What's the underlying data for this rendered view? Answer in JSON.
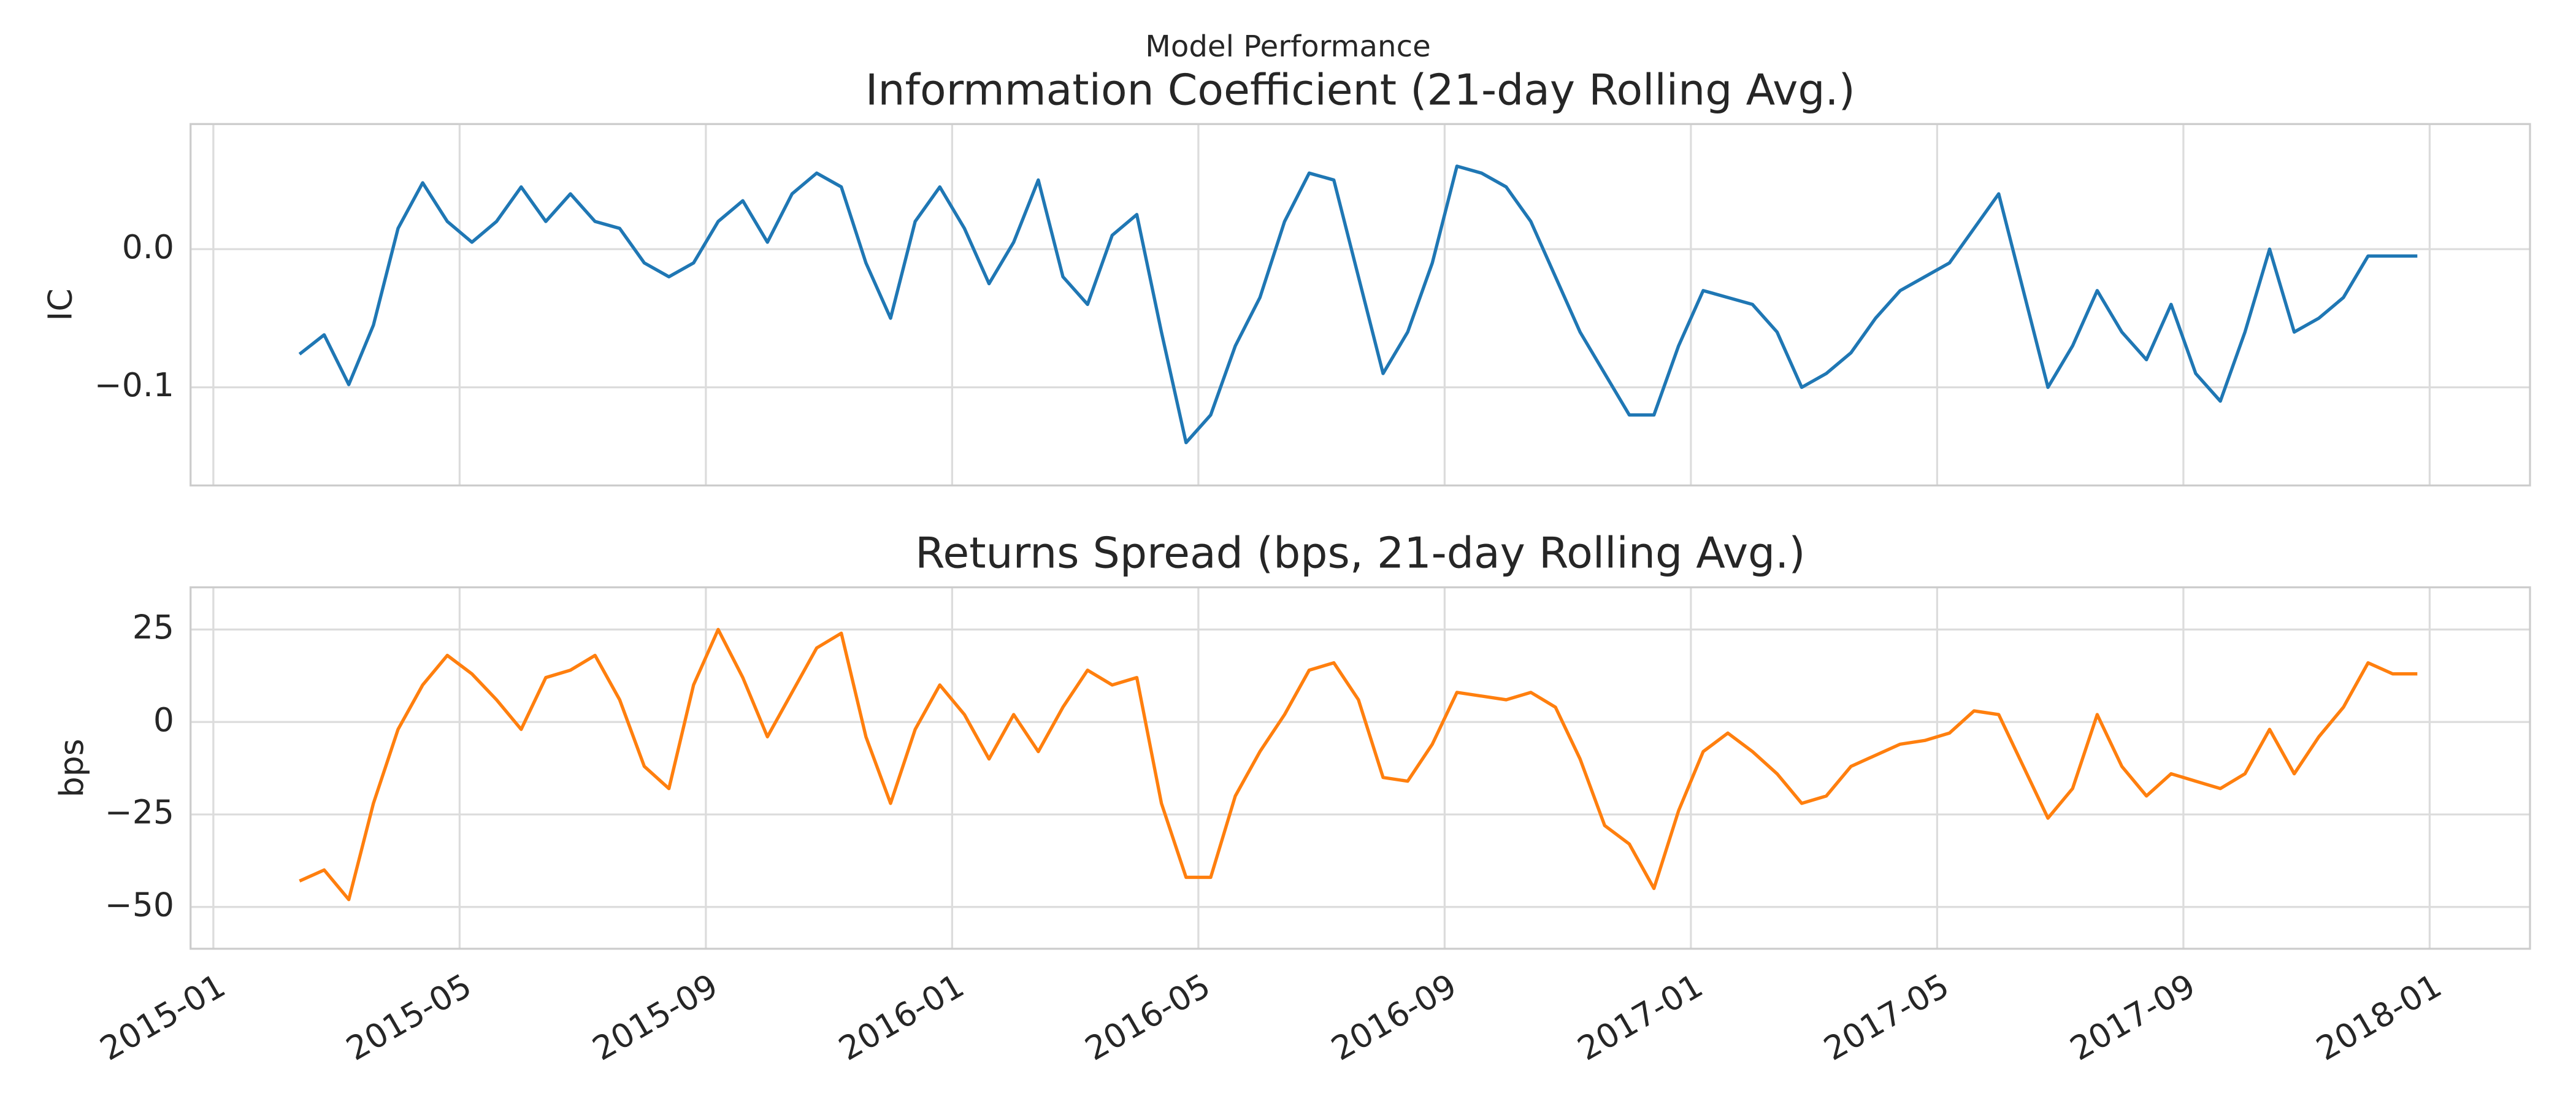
{
  "title": "Model Performance",
  "chart_data": [
    {
      "type": "line",
      "title": "Informmation Coefficient (21-day Rolling Avg.)",
      "ylabel": "IC",
      "color": "#1f77b4",
      "grid": true,
      "xlim": [
        -0.37,
        37.63
      ],
      "xticks": [
        0,
        4,
        8,
        12,
        16,
        20,
        24,
        28,
        32,
        36
      ],
      "ylim": [
        -0.171,
        0.0905
      ],
      "yticks": [
        {
          "value": 0,
          "label": "0.0"
        },
        {
          "value": -0.1,
          "label": "−0.1"
        }
      ],
      "x": [
        1.4,
        1.8,
        2.2,
        2.6,
        3,
        3.4,
        3.8,
        4.2,
        4.6,
        5,
        5.4,
        5.8,
        6.2,
        6.6,
        7,
        7.4,
        7.8,
        8.2,
        8.6,
        9,
        9.4,
        9.8,
        10.2,
        10.6,
        11,
        11.4,
        11.8,
        12.2,
        12.6,
        13,
        13.4,
        13.8,
        14.2,
        14.6,
        15,
        15.4,
        15.8,
        16.2,
        16.6,
        17,
        17.4,
        17.8,
        18.2,
        18.6,
        19,
        19.4,
        19.8,
        20.2,
        20.6,
        21,
        21.4,
        21.8,
        22.2,
        22.6,
        23,
        23.4,
        23.8,
        24.2,
        24.6,
        25,
        25.4,
        25.8,
        26.2,
        26.6,
        27,
        27.4,
        27.8,
        28.2,
        28.6,
        29,
        29.4,
        29.8,
        30.2,
        30.6,
        31,
        31.4,
        31.8,
        32.2,
        32.6,
        33,
        33.4,
        33.8,
        34.2,
        34.6,
        35,
        35.4,
        35.8
      ],
      "values": [
        -0.076,
        -0.062,
        -0.098,
        -0.055,
        0.015,
        0.048,
        0.02,
        0.005,
        0.02,
        0.045,
        0.02,
        0.04,
        0.02,
        0.015,
        -0.01,
        -0.02,
        -0.01,
        0.02,
        0.035,
        0.005,
        0.04,
        0.055,
        0.045,
        -0.01,
        -0.05,
        0.02,
        0.045,
        0.015,
        -0.025,
        0.005,
        0.05,
        -0.02,
        -0.04,
        0.01,
        0.025,
        -0.06,
        -0.14,
        -0.12,
        -0.07,
        -0.035,
        0.02,
        0.055,
        0.05,
        -0.02,
        -0.09,
        -0.06,
        -0.01,
        0.06,
        0.055,
        0.045,
        0.02,
        -0.02,
        -0.06,
        -0.09,
        -0.12,
        -0.12,
        -0.07,
        -0.03,
        -0.035,
        -0.04,
        -0.06,
        -0.1,
        -0.09,
        -0.075,
        -0.05,
        -0.03,
        -0.02,
        -0.01,
        0.015,
        0.04,
        -0.03,
        -0.1,
        -0.07,
        -0.03,
        -0.06,
        -0.08,
        -0.04,
        -0.09,
        -0.11,
        -0.06,
        0.0,
        -0.06,
        -0.05,
        -0.035,
        -0.005,
        -0.005,
        -0.005
      ]
    },
    {
      "type": "line",
      "title": "Returns Spread (bps, 21-day Rolling Avg.)",
      "ylabel": "bps",
      "color": "#ff7f0e",
      "grid": true,
      "xlim": [
        -0.37,
        37.63
      ],
      "xticks": [
        {
          "value": 0,
          "label": "2015-01"
        },
        {
          "value": 4,
          "label": "2015-05"
        },
        {
          "value": 8,
          "label": "2015-09"
        },
        {
          "value": 12,
          "label": "2016-01"
        },
        {
          "value": 16,
          "label": "2016-05"
        },
        {
          "value": 20,
          "label": "2016-09"
        },
        {
          "value": 24,
          "label": "2017-01"
        },
        {
          "value": 28,
          "label": "2017-05"
        },
        {
          "value": 32,
          "label": "2017-09"
        },
        {
          "value": 36,
          "label": "2018-01"
        }
      ],
      "ylim": [
        -61.3,
        36.4
      ],
      "yticks": [
        25,
        0,
        {
          "value": -25,
          "label": "−25"
        },
        {
          "value": -50,
          "label": "−50"
        }
      ],
      "x": [
        1.4,
        1.8,
        2.2,
        2.6,
        3,
        3.4,
        3.8,
        4.2,
        4.6,
        5,
        5.4,
        5.8,
        6.2,
        6.6,
        7,
        7.4,
        7.8,
        8.2,
        8.6,
        9,
        9.4,
        9.8,
        10.2,
        10.6,
        11,
        11.4,
        11.8,
        12.2,
        12.6,
        13,
        13.4,
        13.8,
        14.2,
        14.6,
        15,
        15.4,
        15.8,
        16.2,
        16.6,
        17,
        17.4,
        17.8,
        18.2,
        18.6,
        19,
        19.4,
        19.8,
        20.2,
        20.6,
        21,
        21.4,
        21.8,
        22.2,
        22.6,
        23,
        23.4,
        23.8,
        24.2,
        24.6,
        25,
        25.4,
        25.8,
        26.2,
        26.6,
        27,
        27.4,
        27.8,
        28.2,
        28.6,
        29,
        29.4,
        29.8,
        30.2,
        30.6,
        31,
        31.4,
        31.8,
        32.2,
        32.6,
        33,
        33.4,
        33.8,
        34.2,
        34.6,
        35,
        35.4,
        35.8
      ],
      "values": [
        -43,
        -40,
        -48,
        -22,
        -2,
        10,
        18,
        13,
        6,
        -2,
        12,
        14,
        18,
        6,
        -12,
        -18,
        10,
        25,
        12,
        -4,
        8,
        20,
        24,
        -4,
        -22,
        -2,
        10,
        2,
        -10,
        2,
        -8,
        4,
        14,
        10,
        12,
        -22,
        -42,
        -42,
        -20,
        -8,
        2,
        14,
        16,
        6,
        -15,
        -16,
        -6,
        8,
        7,
        6,
        8,
        4,
        -10,
        -28,
        -33,
        -45,
        -24,
        -8,
        -3,
        -8,
        -14,
        -22,
        -20,
        -12,
        -9,
        -6,
        -5,
        -3,
        3,
        2,
        -12,
        -26,
        -18,
        2,
        -12,
        -20,
        -14,
        -16,
        -18,
        -14,
        -2,
        -14,
        -4,
        4,
        16,
        13,
        13
      ]
    }
  ]
}
